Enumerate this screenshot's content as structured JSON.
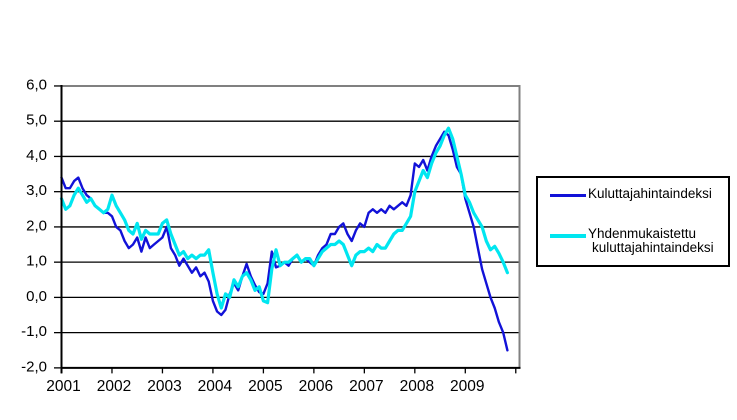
{
  "chart_data": {
    "type": "line",
    "title": "",
    "xlabel": "",
    "ylabel": "",
    "ylim": [
      -2.0,
      6.0
    ],
    "y_step": 1.0,
    "y_tick_labels": [
      "6,0",
      "5,0",
      "4,0",
      "3,0",
      "2,0",
      "1,0",
      "0,0",
      "-1,0",
      "-2,0"
    ],
    "x_tick_labels": [
      "2001",
      "2002",
      "2003",
      "2004",
      "2005",
      "2006",
      "2007",
      "2008",
      "2009"
    ],
    "x_start_month": "2001-01",
    "x_end_month": "2009-11",
    "grid": "horizontal black gridlines at every 1.0; gray top and right plot border",
    "legend_position": "right-outside",
    "colors": {
      "grid": "#000000",
      "plot_border": "#808080",
      "axis": "#000000",
      "cpi_blue": "#1212d8",
      "hicp_cyan": "#00e6f0"
    },
    "series": [
      {
        "name": "Kuluttajahintaindeksi",
        "color": "#1212d8",
        "stroke_width": 2.4,
        "values": [
          3.4,
          3.1,
          3.1,
          3.3,
          3.4,
          3.1,
          2.9,
          2.8,
          2.6,
          2.5,
          2.4,
          2.4,
          2.3,
          2.0,
          1.9,
          1.6,
          1.4,
          1.5,
          1.7,
          1.3,
          1.7,
          1.4,
          1.5,
          1.6,
          1.7,
          2.0,
          1.4,
          1.2,
          0.9,
          1.1,
          0.9,
          0.7,
          0.85,
          0.6,
          0.7,
          0.45,
          -0.1,
          -0.4,
          -0.5,
          -0.35,
          0.1,
          0.4,
          0.2,
          0.6,
          0.95,
          0.6,
          0.35,
          0.15,
          0.1,
          0.4,
          1.3,
          0.85,
          0.9,
          1.0,
          0.9,
          1.1,
          1.2,
          1.0,
          1.1,
          1.0,
          0.9,
          1.2,
          1.4,
          1.5,
          1.8,
          1.8,
          2.0,
          2.1,
          1.8,
          1.6,
          1.9,
          2.1,
          2.0,
          2.4,
          2.5,
          2.4,
          2.5,
          2.4,
          2.6,
          2.5,
          2.6,
          2.7,
          2.6,
          2.9,
          3.8,
          3.7,
          3.9,
          3.6,
          4.0,
          4.3,
          4.5,
          4.7,
          4.6,
          4.2,
          3.7,
          3.5,
          2.8,
          2.4,
          2.0,
          1.4,
          0.8,
          0.4,
          0.0,
          -0.3,
          -0.7,
          -1.0,
          -1.5
        ]
      },
      {
        "name": "Yhdenmukaistettu kuluttajahintaindeksi",
        "color": "#00e6f0",
        "stroke_width": 3.2,
        "values": [
          2.8,
          2.5,
          2.6,
          2.9,
          3.1,
          2.9,
          2.7,
          2.8,
          2.6,
          2.5,
          2.4,
          2.5,
          2.9,
          2.6,
          2.4,
          2.2,
          1.9,
          1.8,
          2.1,
          1.65,
          1.9,
          1.8,
          1.8,
          1.8,
          2.1,
          2.2,
          1.8,
          1.5,
          1.2,
          1.3,
          1.1,
          1.2,
          1.1,
          1.2,
          1.2,
          1.35,
          0.7,
          0.1,
          -0.3,
          0.1,
          0.0,
          0.5,
          0.3,
          0.6,
          0.7,
          0.5,
          0.2,
          0.3,
          -0.1,
          -0.15,
          0.8,
          1.35,
          0.9,
          1.0,
          1.0,
          1.1,
          1.2,
          1.0,
          1.1,
          1.1,
          0.9,
          1.1,
          1.3,
          1.4,
          1.5,
          1.5,
          1.6,
          1.5,
          1.2,
          0.9,
          1.2,
          1.3,
          1.3,
          1.4,
          1.3,
          1.5,
          1.4,
          1.4,
          1.6,
          1.8,
          1.9,
          1.9,
          2.1,
          2.3,
          3.0,
          3.3,
          3.6,
          3.4,
          3.8,
          4.1,
          4.3,
          4.6,
          4.8,
          4.5,
          4.0,
          3.5,
          2.9,
          2.7,
          2.4,
          2.2,
          2.0,
          1.6,
          1.35,
          1.45,
          1.25,
          1.0,
          0.7
        ]
      }
    ]
  },
  "legend": {
    "item1_label": "Kuluttajahintaindeksi",
    "item2_line1": "Yhdenmukaistettu",
    "item2_line2": "kuluttajahintaindeksi"
  }
}
